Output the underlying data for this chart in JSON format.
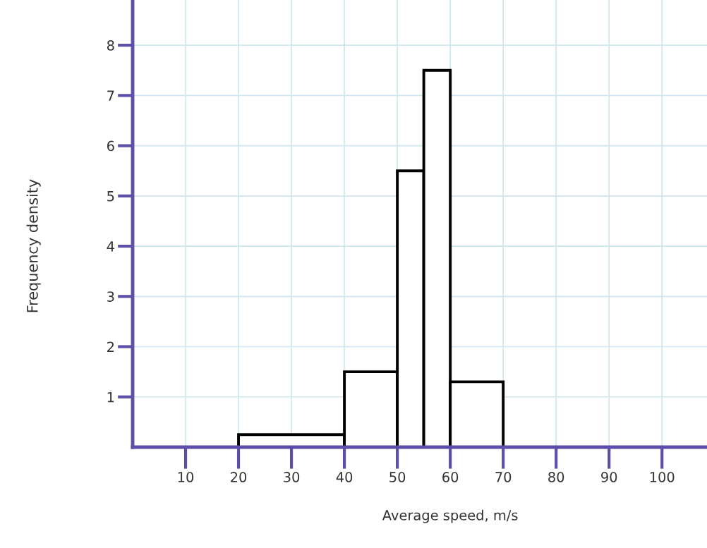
{
  "chart_data": {
    "type": "histogram",
    "xlabel": "Average speed, m/s",
    "ylabel": "Frequency density",
    "bins": [
      20,
      40,
      50,
      55,
      60,
      70
    ],
    "values": [
      0.25,
      1.5,
      5.5,
      7.5,
      1.3
    ],
    "color": "#000000",
    "xlim": [
      0,
      108.5
    ],
    "ylim": [
      0,
      8.9
    ],
    "xticks": [
      10,
      20,
      30,
      40,
      50,
      60,
      70,
      80,
      90,
      100
    ],
    "yticks": [
      1,
      2,
      3,
      4,
      5,
      6,
      7,
      8
    ],
    "grid": true
  }
}
